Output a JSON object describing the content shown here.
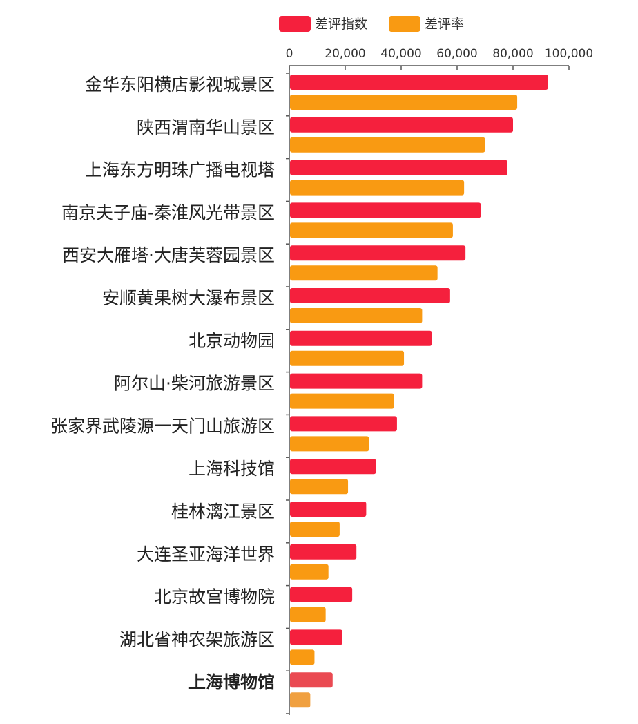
{
  "chart_data": {
    "type": "bar",
    "orientation": "horizontal",
    "categories": [
      "金华东阳横店影视城景区",
      "陕西渭南华山景区",
      "上海东方明珠广播电视塔",
      "南京夫子庙-秦淮风光带景区",
      "西安大雁塔·大唐芙蓉园景区",
      "安顺黄果树大瀑布景区",
      "北京动物园",
      "阿尔山·柴河旅游景区",
      "张家界武陵源一天门山旅游区",
      "上海科技馆",
      "桂林漓江景区",
      "大连圣亚海洋世界",
      "北京故宫博物院",
      "湖北省神农架旅游区",
      "上海博物馆"
    ],
    "highlight_category": "上海博物馆",
    "series": [
      {
        "name": "差评指数",
        "color": "#f5203d",
        "values": [
          92500,
          80000,
          78000,
          68500,
          63000,
          57500,
          51000,
          47500,
          38500,
          31000,
          27500,
          24000,
          22500,
          19000,
          15500
        ]
      },
      {
        "name": "差评率",
        "color": "#f99a12",
        "values": [
          81500,
          70000,
          62500,
          58500,
          53000,
          47500,
          41000,
          37500,
          28500,
          21000,
          18000,
          14000,
          13000,
          9000,
          7500
        ]
      }
    ],
    "xlim": [
      0,
      100000
    ],
    "xticks": [
      0,
      20000,
      40000,
      60000,
      80000,
      100000
    ],
    "xtick_labels": [
      "0",
      "20,000",
      "40,000",
      "60,000",
      "80,000",
      "100,000"
    ],
    "axis_position": "top",
    "legend_position": "top",
    "grid": false,
    "title": "",
    "xlabel": "",
    "ylabel": ""
  }
}
